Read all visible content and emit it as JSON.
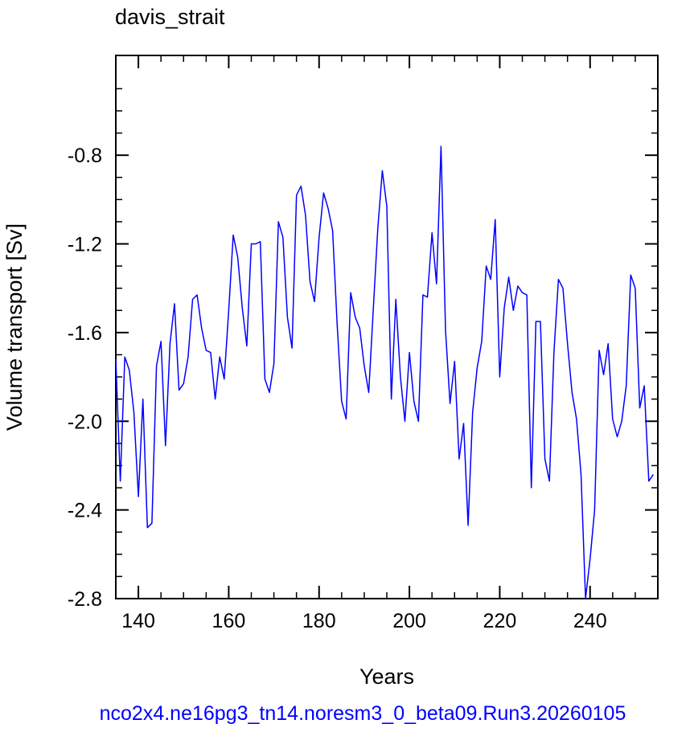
{
  "chart_data": {
    "type": "line",
    "title": "davis_strait",
    "xlabel": "Years",
    "ylabel": "Volume transport [Sv]",
    "caption": "nco2x4.ne16pg3_tn14.noresm3_0_beta09.Run3.20260105",
    "xlim": [
      135,
      255
    ],
    "ylim": [
      -2.8,
      -0.35
    ],
    "xticks": [
      140,
      160,
      180,
      200,
      220,
      240
    ],
    "xtick_labels": [
      "140",
      "160",
      "180",
      "200",
      "220",
      "240"
    ],
    "yticks": [
      -0.8,
      -1.2,
      -1.6,
      -2.0,
      -2.4,
      -2.8
    ],
    "ytick_labels": [
      "-0.8",
      "-1.2",
      "-1.6",
      "-2.0",
      "-2.4",
      "-2.8"
    ],
    "line_color": "#0000ff",
    "grid": false,
    "series": [
      {
        "values": [
          [
            135,
            -1.72
          ],
          [
            136,
            -2.27
          ],
          [
            137,
            -1.71
          ],
          [
            138,
            -1.77
          ],
          [
            139,
            -1.96
          ],
          [
            140,
            -2.34
          ],
          [
            141,
            -1.9
          ],
          [
            142,
            -2.48
          ],
          [
            143,
            -2.46
          ],
          [
            144,
            -1.75
          ],
          [
            145,
            -1.64
          ],
          [
            146,
            -2.11
          ],
          [
            147,
            -1.65
          ],
          [
            148,
            -1.47
          ],
          [
            149,
            -1.86
          ],
          [
            150,
            -1.83
          ],
          [
            151,
            -1.71
          ],
          [
            152,
            -1.45
          ],
          [
            153,
            -1.43
          ],
          [
            154,
            -1.58
          ],
          [
            155,
            -1.68
          ],
          [
            156,
            -1.69
          ],
          [
            157,
            -1.9
          ],
          [
            158,
            -1.71
          ],
          [
            159,
            -1.81
          ],
          [
            160,
            -1.5
          ],
          [
            161,
            -1.16
          ],
          [
            162,
            -1.26
          ],
          [
            163,
            -1.49
          ],
          [
            164,
            -1.66
          ],
          [
            165,
            -1.2
          ],
          [
            166,
            -1.2
          ],
          [
            167,
            -1.19
          ],
          [
            168,
            -1.81
          ],
          [
            169,
            -1.87
          ],
          [
            170,
            -1.74
          ],
          [
            171,
            -1.1
          ],
          [
            172,
            -1.17
          ],
          [
            173,
            -1.53
          ],
          [
            174,
            -1.67
          ],
          [
            175,
            -0.98
          ],
          [
            176,
            -0.94
          ],
          [
            177,
            -1.07
          ],
          [
            178,
            -1.37
          ],
          [
            179,
            -1.46
          ],
          [
            180,
            -1.17
          ],
          [
            181,
            -0.97
          ],
          [
            182,
            -1.04
          ],
          [
            183,
            -1.14
          ],
          [
            184,
            -1.56
          ],
          [
            185,
            -1.91
          ],
          [
            186,
            -1.99
          ],
          [
            187,
            -1.42
          ],
          [
            188,
            -1.53
          ],
          [
            189,
            -1.58
          ],
          [
            190,
            -1.75
          ],
          [
            191,
            -1.87
          ],
          [
            192,
            -1.5
          ],
          [
            193,
            -1.13
          ],
          [
            194,
            -0.87
          ],
          [
            195,
            -1.03
          ],
          [
            196,
            -1.9
          ],
          [
            197,
            -1.45
          ],
          [
            198,
            -1.8
          ],
          [
            199,
            -2.0
          ],
          [
            200,
            -1.69
          ],
          [
            201,
            -1.91
          ],
          [
            202,
            -2.0
          ],
          [
            203,
            -1.43
          ],
          [
            204,
            -1.44
          ],
          [
            205,
            -1.15
          ],
          [
            206,
            -1.38
          ],
          [
            207,
            -0.76
          ],
          [
            208,
            -1.59
          ],
          [
            209,
            -1.92
          ],
          [
            210,
            -1.73
          ],
          [
            211,
            -2.17
          ],
          [
            212,
            -2.01
          ],
          [
            213,
            -2.47
          ],
          [
            214,
            -1.96
          ],
          [
            215,
            -1.76
          ],
          [
            216,
            -1.64
          ],
          [
            217,
            -1.3
          ],
          [
            218,
            -1.36
          ],
          [
            219,
            -1.09
          ],
          [
            220,
            -1.8
          ],
          [
            221,
            -1.49
          ],
          [
            222,
            -1.35
          ],
          [
            223,
            -1.5
          ],
          [
            224,
            -1.39
          ],
          [
            225,
            -1.42
          ],
          [
            226,
            -1.43
          ],
          [
            227,
            -2.3
          ],
          [
            228,
            -1.55
          ],
          [
            229,
            -1.55
          ],
          [
            230,
            -2.17
          ],
          [
            231,
            -2.27
          ],
          [
            232,
            -1.69
          ],
          [
            233,
            -1.36
          ],
          [
            234,
            -1.4
          ],
          [
            235,
            -1.65
          ],
          [
            236,
            -1.87
          ],
          [
            237,
            -1.99
          ],
          [
            238,
            -2.24
          ],
          [
            239,
            -2.8
          ],
          [
            240,
            -2.62
          ],
          [
            241,
            -2.4
          ],
          [
            242,
            -1.68
          ],
          [
            243,
            -1.79
          ],
          [
            244,
            -1.65
          ],
          [
            245,
            -1.99
          ],
          [
            246,
            -2.07
          ],
          [
            247,
            -2.0
          ],
          [
            248,
            -1.84
          ],
          [
            249,
            -1.34
          ],
          [
            250,
            -1.4
          ],
          [
            251,
            -1.94
          ],
          [
            252,
            -1.84
          ],
          [
            253,
            -2.27
          ],
          [
            254,
            -2.24
          ]
        ]
      }
    ]
  }
}
